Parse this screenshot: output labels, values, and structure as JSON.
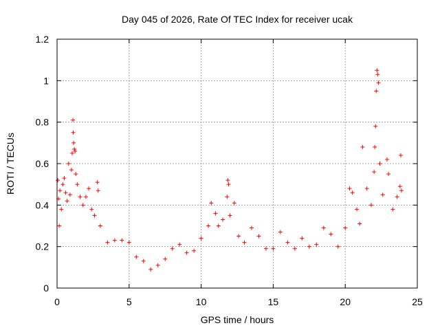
{
  "chart_data": {
    "type": "scatter",
    "title": "Day 045 of 2026, Rate Of TEC Index for receiver ucak",
    "xlabel": "GPS time / hours",
    "ylabel": "ROTI / TECUs",
    "xlim": [
      0,
      25
    ],
    "ylim": [
      0,
      1.2
    ],
    "xticks": [
      "0",
      "5",
      "10",
      "15",
      "20",
      "25"
    ],
    "yticks": [
      "0",
      "0.2",
      "0.4",
      "0.6",
      "0.8",
      "1",
      "1.2"
    ],
    "grid": true,
    "marker": "+",
    "color": "#ff0000",
    "series": [
      {
        "points": [
          [
            0.05,
            0.52
          ],
          [
            0.1,
            0.43
          ],
          [
            0.15,
            0.3
          ],
          [
            0.2,
            0.47
          ],
          [
            0.3,
            0.38
          ],
          [
            0.4,
            0.5
          ],
          [
            0.5,
            0.53
          ],
          [
            0.6,
            0.46
          ],
          [
            0.7,
            0.42
          ],
          [
            0.8,
            0.6
          ],
          [
            0.9,
            0.45
          ],
          [
            1.0,
            0.57
          ],
          [
            1.05,
            0.65
          ],
          [
            1.1,
            0.81
          ],
          [
            1.12,
            0.75
          ],
          [
            1.15,
            0.7
          ],
          [
            1.2,
            0.67
          ],
          [
            1.25,
            0.66
          ],
          [
            1.3,
            0.55
          ],
          [
            1.4,
            0.5
          ],
          [
            1.6,
            0.44
          ],
          [
            1.8,
            0.4
          ],
          [
            2.0,
            0.44
          ],
          [
            2.2,
            0.48
          ],
          [
            2.4,
            0.38
          ],
          [
            2.6,
            0.35
          ],
          [
            2.8,
            0.51
          ],
          [
            2.85,
            0.47
          ],
          [
            3.0,
            0.3
          ],
          [
            3.5,
            0.22
          ],
          [
            4.0,
            0.23
          ],
          [
            4.5,
            0.23
          ],
          [
            5.0,
            0.22
          ],
          [
            5.5,
            0.15
          ],
          [
            6.0,
            0.13
          ],
          [
            6.5,
            0.09
          ],
          [
            7.0,
            0.11
          ],
          [
            7.5,
            0.14
          ],
          [
            8.0,
            0.19
          ],
          [
            8.5,
            0.21
          ],
          [
            9.0,
            0.17
          ],
          [
            9.5,
            0.18
          ],
          [
            10.0,
            0.24
          ],
          [
            10.5,
            0.3
          ],
          [
            10.7,
            0.41
          ],
          [
            11.0,
            0.36
          ],
          [
            11.2,
            0.3
          ],
          [
            11.5,
            0.33
          ],
          [
            11.8,
            0.44
          ],
          [
            11.85,
            0.52
          ],
          [
            11.9,
            0.5
          ],
          [
            12.0,
            0.35
          ],
          [
            12.3,
            0.41
          ],
          [
            12.6,
            0.25
          ],
          [
            13.0,
            0.22
          ],
          [
            13.5,
            0.29
          ],
          [
            14.0,
            0.25
          ],
          [
            14.5,
            0.19
          ],
          [
            15.0,
            0.19
          ],
          [
            15.5,
            0.27
          ],
          [
            16.0,
            0.22
          ],
          [
            16.5,
            0.19
          ],
          [
            17.0,
            0.24
          ],
          [
            17.5,
            0.2
          ],
          [
            18.0,
            0.21
          ],
          [
            18.5,
            0.29
          ],
          [
            19.0,
            0.26
          ],
          [
            19.5,
            0.2
          ],
          [
            20.0,
            0.29
          ],
          [
            20.3,
            0.48
          ],
          [
            20.5,
            0.46
          ],
          [
            20.8,
            0.38
          ],
          [
            21.0,
            0.31
          ],
          [
            21.2,
            0.68
          ],
          [
            21.5,
            0.48
          ],
          [
            21.8,
            0.4
          ],
          [
            22.0,
            0.56
          ],
          [
            22.05,
            0.68
          ],
          [
            22.1,
            0.78
          ],
          [
            22.15,
            0.95
          ],
          [
            22.2,
            1.05
          ],
          [
            22.25,
            1.03
          ],
          [
            22.3,
            0.99
          ],
          [
            22.4,
            0.6
          ],
          [
            22.6,
            0.45
          ],
          [
            22.9,
            0.62
          ],
          [
            23.0,
            0.55
          ],
          [
            23.3,
            0.38
          ],
          [
            23.6,
            0.44
          ],
          [
            23.8,
            0.49
          ],
          [
            23.85,
            0.64
          ],
          [
            23.9,
            0.47
          ]
        ]
      }
    ]
  }
}
